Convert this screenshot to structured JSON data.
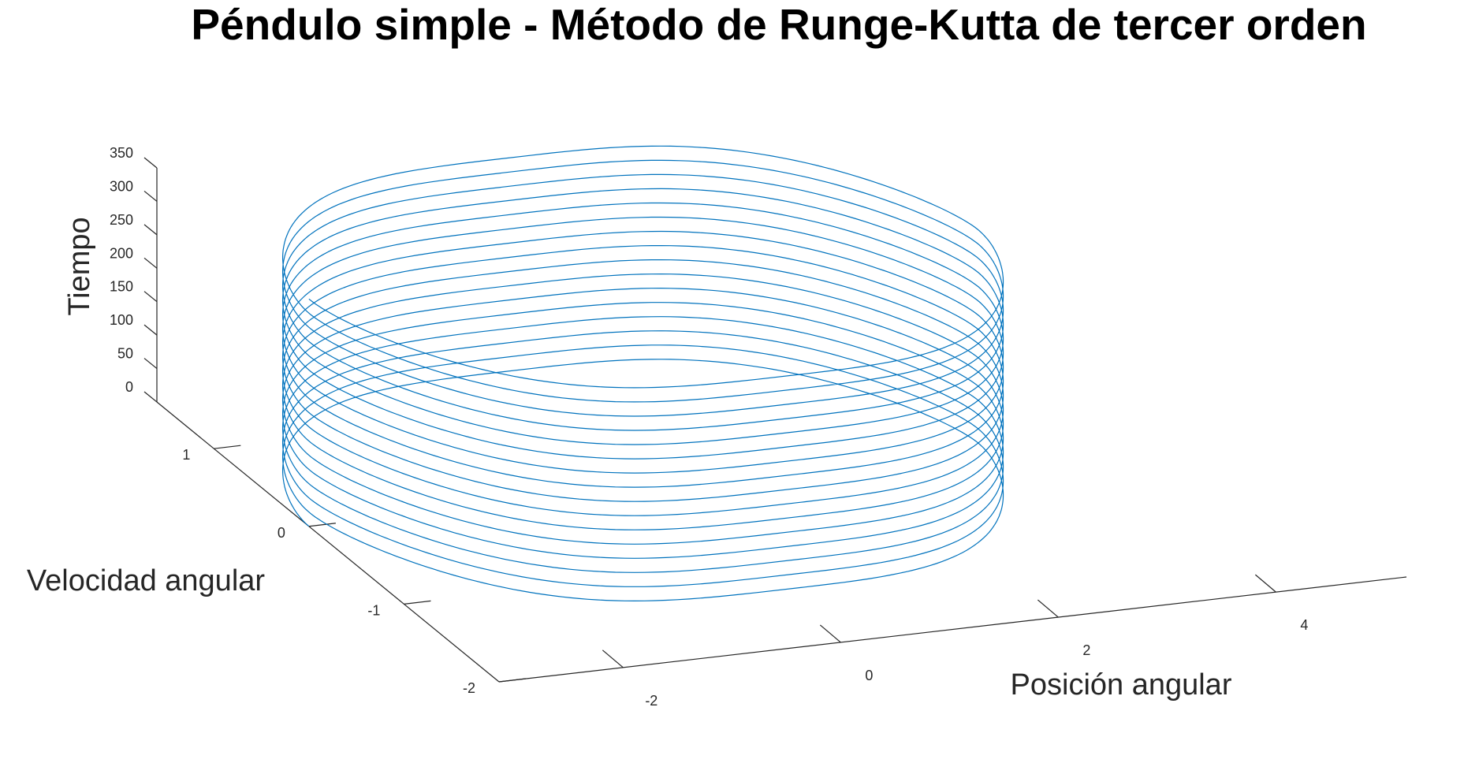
{
  "chart_data": {
    "type": "line",
    "projection": "3d",
    "title": "Péndulo simple - Método de Runge-Kutta de tercer orden",
    "xlabel": "Posición angular",
    "ylabel": "Velocidad angular",
    "zlabel": "Tiempo",
    "xlim": [
      -3.14,
      5.2
    ],
    "ylim": [
      -2,
      1.6
    ],
    "zlim": [
      0,
      350
    ],
    "xticks": [
      -2,
      0,
      2,
      4
    ],
    "yticks": [
      -2,
      -1,
      0,
      1
    ],
    "zticks": [
      0,
      50,
      100,
      150,
      200,
      250,
      300,
      350
    ],
    "grid": false,
    "series": [
      {
        "color": "#0072BD",
        "description_values": {
          "theta_start": 0,
          "omega_start": 1.45,
          "theta_range": [
            -3.14,
            3.0
          ],
          "omega_range": [
            -1.45,
            1.45
          ],
          "time_range": [
            0,
            340
          ],
          "turns": 16
        }
      }
    ]
  }
}
